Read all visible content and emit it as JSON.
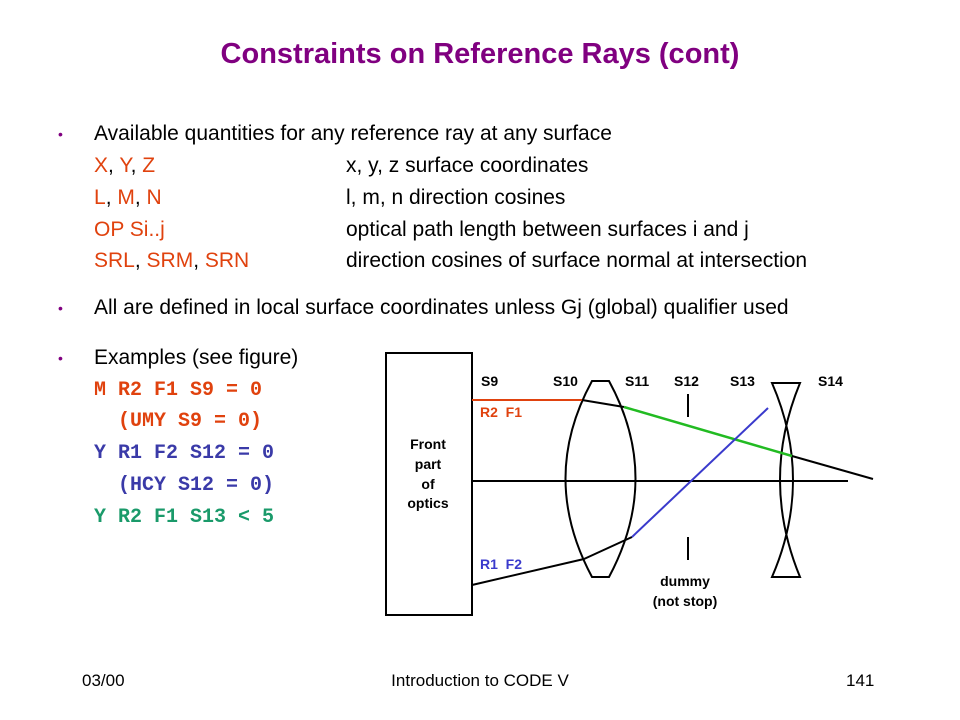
{
  "title": "Constraints on Reference Rays (cont)",
  "bullet1": {
    "text": "Available quantities for any reference ray at any surface",
    "rows": [
      {
        "names": [
          "X",
          "Y",
          "Z"
        ],
        "desc": "x, y, z surface coordinates"
      },
      {
        "names": [
          "L",
          "M",
          "N"
        ],
        "desc": "l, m, n direction cosines"
      },
      {
        "names": [
          "OP Si..j"
        ],
        "desc": "optical path length between surfaces i and j"
      },
      {
        "names": [
          "SRL",
          "SRM",
          "SRN"
        ],
        "desc": "direction cosines of surface normal at intersection"
      }
    ]
  },
  "bullet2": {
    "text": "All are defined in local surface coordinates unless Gj (global) qualifier used"
  },
  "bullet3": {
    "text": "Examples (see figure)",
    "examples": [
      {
        "code": "M R2 F1 S9 = 0",
        "color": "#e0420e"
      },
      {
        "code": "  (UMY S9 = 0)",
        "color": "#e0420e"
      },
      {
        "code": "Y R1 F2 S12 = 0",
        "color": "#3a3aa8"
      },
      {
        "code": "  (HCY S12 = 0)",
        "color": "#3a3aa8"
      },
      {
        "code": "Y R2 F1 S13 < 5",
        "color": "#1a9a6a"
      }
    ]
  },
  "figure": {
    "box_label": [
      "Front",
      "part",
      "of",
      "optics"
    ],
    "surfaces": [
      "S9",
      "S10",
      "S11",
      "S12",
      "S13",
      "S14"
    ],
    "ray_top": "R2  F1",
    "ray_bottom": "R1  F2",
    "dummy": [
      "dummy",
      "(not stop)"
    ],
    "colors": {
      "red_ray": "#e0420e",
      "green_ray": "#22bb22",
      "blue_ray": "#3a3acc"
    }
  },
  "footer": {
    "date": "03/00",
    "center": "Introduction to CODE V",
    "page": "141"
  }
}
